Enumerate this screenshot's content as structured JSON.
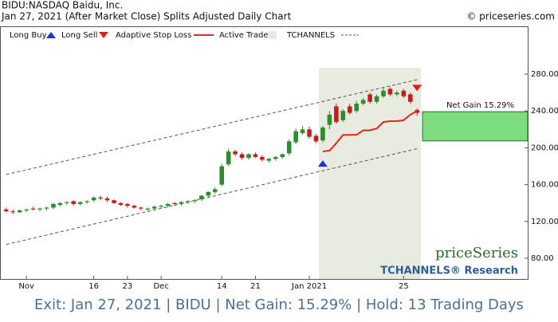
{
  "chart_data": {
    "type": "candlestick",
    "title": "BIDU:NASDAQ Baidu, Inc.",
    "subtitle": "Jan 27, 2021 (After Market Close)  Splits Adjusted Daily Chart",
    "copyright": "© priceseries.com",
    "watermark": "priceSeries",
    "brand": "TCHANNELS® Research",
    "footer": "Exit: Jan 27, 2021 | BIDU | Net Gain: 15.29% | Hold: 13 Trading Days",
    "categories": [
      null,
      null,
      null,
      "Nov",
      null,
      null,
      null,
      null,
      null,
      null,
      null,
      null,
      null,
      "16",
      null,
      null,
      null,
      null,
      "23",
      null,
      null,
      null,
      null,
      "Dec",
      null,
      null,
      null,
      null,
      null,
      null,
      null,
      null,
      "14",
      null,
      null,
      null,
      null,
      "21",
      null,
      null,
      null,
      null,
      null,
      null,
      null,
      "Jan 2021",
      null,
      null,
      null,
      null,
      null,
      null,
      null,
      null,
      null,
      null,
      null,
      null,
      null,
      "25",
      null,
      null
    ],
    "open": [
      133,
      131,
      130,
      132,
      134,
      133,
      134,
      135,
      138,
      140,
      142,
      139,
      141,
      143,
      146,
      145,
      143,
      140,
      139,
      137,
      135,
      133,
      134,
      136,
      137,
      140,
      139,
      141,
      142,
      144,
      148,
      152,
      160,
      182,
      196,
      193,
      189,
      193,
      190,
      186,
      188,
      190,
      194,
      206,
      216,
      220,
      213,
      208,
      225,
      245,
      230,
      245,
      240,
      248,
      258,
      250,
      256,
      264,
      258,
      262,
      258,
      241
    ],
    "high": [
      135,
      133,
      133,
      134,
      136,
      135,
      136,
      140,
      141,
      142,
      143,
      142,
      143,
      147,
      148,
      147,
      144,
      141,
      140,
      138,
      136,
      135,
      137,
      138,
      140,
      141,
      142,
      143,
      144,
      149,
      153,
      157,
      183,
      199,
      198,
      195,
      194,
      195,
      192,
      189,
      191,
      194,
      209,
      221,
      224,
      223,
      215,
      224,
      240,
      248,
      242,
      248,
      251,
      254,
      260,
      258,
      265,
      266,
      262,
      264,
      260,
      243
    ],
    "low": [
      130,
      128,
      129,
      130,
      132,
      131,
      132,
      133,
      136,
      138,
      137,
      137,
      139,
      141,
      143,
      141,
      139,
      137,
      135,
      134,
      132,
      131,
      132,
      134,
      135,
      137,
      137,
      139,
      140,
      142,
      146,
      150,
      158,
      180,
      191,
      187,
      187,
      189,
      185,
      184,
      186,
      188,
      192,
      204,
      214,
      210,
      205,
      206,
      220,
      226,
      228,
      236,
      238,
      246,
      248,
      248,
      254,
      256,
      256,
      254,
      248,
      235
    ],
    "close": [
      131,
      130,
      132,
      133,
      133,
      134,
      135,
      139,
      140,
      141,
      139,
      141,
      142,
      146,
      145,
      143,
      140,
      138,
      137,
      135,
      134,
      134,
      136,
      137,
      139,
      139,
      141,
      142,
      143,
      148,
      152,
      155,
      180,
      196,
      193,
      189,
      193,
      190,
      187,
      188,
      190,
      193,
      207,
      218,
      220,
      212,
      207,
      222,
      236,
      228,
      240,
      238,
      248,
      252,
      250,
      256,
      262,
      258,
      260,
      256,
      250,
      238
    ],
    "up_color": "#2e8b2e",
    "down_color": "#c0201c",
    "stop_loss": {
      "name": "Adaptive Stop Loss",
      "color": "#e8261e",
      "values": [
        null,
        null,
        null,
        null,
        null,
        null,
        null,
        null,
        null,
        null,
        null,
        null,
        null,
        null,
        null,
        null,
        null,
        null,
        null,
        null,
        null,
        null,
        null,
        null,
        null,
        null,
        null,
        null,
        null,
        null,
        null,
        null,
        null,
        null,
        null,
        null,
        null,
        null,
        null,
        null,
        null,
        null,
        null,
        null,
        null,
        null,
        null,
        196,
        197,
        205,
        214,
        214,
        214,
        219,
        219,
        221,
        228,
        229,
        229,
        230,
        236,
        240
      ]
    },
    "channel": {
      "name": "TCHANNELS",
      "upper": [
        171,
        274
      ],
      "lower": [
        95,
        199
      ]
    },
    "long_buy": {
      "name": "Long Buy",
      "color": "#1f2fe0",
      "index": 47,
      "value": 183
    },
    "long_sell": {
      "name": "Long Sell",
      "color": "#e0201c",
      "index": 61,
      "value": 265
    },
    "active_trade": {
      "name": "Active Trade",
      "from": 47,
      "to": 61,
      "color": "#e8ebdf"
    },
    "net_gain": {
      "label": "Net Gain 15.29%",
      "from": 207.5,
      "to": 239.2,
      "color": "#7ddc7d"
    },
    "ylim": [
      57.5,
      332
    ],
    "yticks": [
      {
        "value": 80,
        "label": "80.00"
      },
      {
        "value": 120,
        "label": "120.00"
      },
      {
        "value": 160,
        "label": "160.00"
      },
      {
        "value": 200,
        "label": "200.00"
      },
      {
        "value": 240,
        "label": "240.00"
      },
      {
        "value": 280,
        "label": "280.00"
      }
    ]
  }
}
